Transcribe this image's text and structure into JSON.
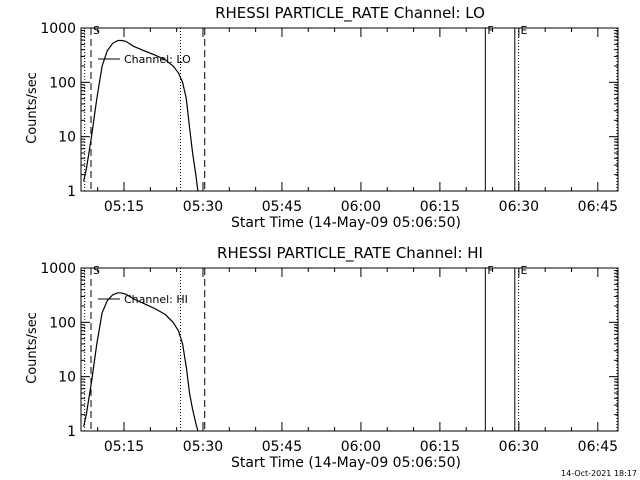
{
  "footer": {
    "timestamp": "14-Oct-2021 18:17"
  },
  "chart_data": [
    {
      "type": "line",
      "title": "RHESSI PARTICLE_RATE Channel: LO",
      "xlabel": "Start Time (14-May-09 05:06:50)",
      "ylabel": "Counts/sec",
      "xlim_minutes": [
        0,
        102
      ],
      "ylim": [
        1,
        1000
      ],
      "yscale": "log",
      "x_ticks": [
        {
          "minute": 8.17,
          "label": "05:15"
        },
        {
          "minute": 23.17,
          "label": "05:30"
        },
        {
          "minute": 38.17,
          "label": "05:45"
        },
        {
          "minute": 53.17,
          "label": "06:00"
        },
        {
          "minute": 68.17,
          "label": "06:15"
        },
        {
          "minute": 83.17,
          "label": "06:30"
        },
        {
          "minute": 98.17,
          "label": "06:45"
        }
      ],
      "y_ticks": [
        {
          "value": 1,
          "label": "1"
        },
        {
          "value": 10,
          "label": "10"
        },
        {
          "value": 100,
          "label": "100"
        },
        {
          "value": 1000,
          "label": "1000"
        }
      ],
      "markers": [
        {
          "minute": 0.7,
          "style": "dotted",
          "label": ""
        },
        {
          "minute": 1.9,
          "style": "dashed",
          "label": "S"
        },
        {
          "minute": 18.9,
          "style": "dotted",
          "label": ""
        },
        {
          "minute": 23.5,
          "style": "dashed",
          "label": ""
        },
        {
          "minute": 76.8,
          "style": "solid",
          "label": "F"
        },
        {
          "minute": 82.4,
          "style": "solid",
          "label": ""
        },
        {
          "minute": 83.1,
          "style": "dotted",
          "label": "E"
        },
        {
          "minute": 101.8,
          "style": "dotted",
          "label": ""
        }
      ],
      "series": [
        {
          "name": "Channel: LO",
          "x": [
            0.5,
            1.0,
            2.0,
            3.0,
            4.0,
            5.0,
            6.0,
            7.0,
            7.7,
            8.5,
            10.0,
            12.0,
            14.0,
            16.0,
            17.5,
            18.5,
            19.3,
            20.0,
            20.6,
            21.2,
            21.8,
            22.2
          ],
          "y": [
            1.5,
            2.5,
            10,
            50,
            200,
            380,
            520,
            590,
            590,
            570,
            460,
            380,
            320,
            260,
            200,
            150,
            100,
            50,
            15,
            5,
            2,
            1
          ]
        }
      ]
    },
    {
      "type": "line",
      "title": "RHESSI PARTICLE_RATE Channel: HI",
      "xlabel": "Start Time (14-May-09 05:06:50)",
      "ylabel": "Counts/sec",
      "xlim_minutes": [
        0,
        102
      ],
      "ylim": [
        1,
        1000
      ],
      "yscale": "log",
      "x_ticks": [
        {
          "minute": 8.17,
          "label": "05:15"
        },
        {
          "minute": 23.17,
          "label": "05:30"
        },
        {
          "minute": 38.17,
          "label": "05:45"
        },
        {
          "minute": 53.17,
          "label": "06:00"
        },
        {
          "minute": 68.17,
          "label": "06:15"
        },
        {
          "minute": 83.17,
          "label": "06:30"
        },
        {
          "minute": 98.17,
          "label": "06:45"
        }
      ],
      "y_ticks": [
        {
          "value": 1,
          "label": "1"
        },
        {
          "value": 10,
          "label": "10"
        },
        {
          "value": 100,
          "label": "100"
        },
        {
          "value": 1000,
          "label": "1000"
        }
      ],
      "markers": [
        {
          "minute": 0.7,
          "style": "dotted",
          "label": ""
        },
        {
          "minute": 1.9,
          "style": "dashed",
          "label": "S"
        },
        {
          "minute": 18.9,
          "style": "dotted",
          "label": ""
        },
        {
          "minute": 23.5,
          "style": "dashed",
          "label": ""
        },
        {
          "minute": 76.8,
          "style": "solid",
          "label": "F"
        },
        {
          "minute": 82.4,
          "style": "solid",
          "label": ""
        },
        {
          "minute": 83.1,
          "style": "dotted",
          "label": "E"
        },
        {
          "minute": 101.8,
          "style": "dotted",
          "label": ""
        }
      ],
      "series": [
        {
          "name": "Channel: HI",
          "x": [
            0.5,
            1.0,
            2.0,
            3.0,
            4.0,
            5.0,
            6.0,
            7.0,
            7.5,
            8.5,
            10.0,
            12.0,
            14.0,
            16.0,
            17.5,
            18.5,
            19.3,
            20.0,
            20.6,
            21.2,
            21.8,
            22.2
          ],
          "y": [
            1.2,
            2,
            8,
            40,
            150,
            250,
            320,
            350,
            350,
            330,
            270,
            220,
            180,
            140,
            100,
            70,
            40,
            15,
            5,
            2.5,
            1.4,
            1
          ]
        }
      ]
    }
  ]
}
